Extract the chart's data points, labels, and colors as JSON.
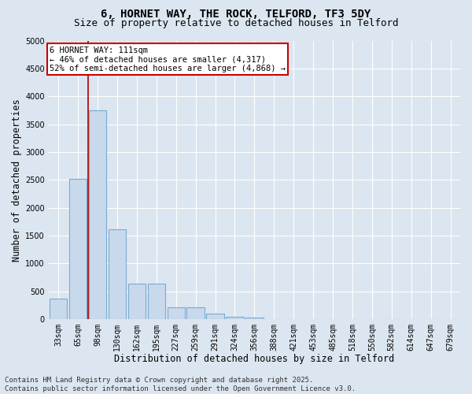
{
  "title": "6, HORNET WAY, THE ROCK, TELFORD, TF3 5DY",
  "subtitle": "Size of property relative to detached houses in Telford",
  "xlabel": "Distribution of detached houses by size in Telford",
  "ylabel": "Number of detached properties",
  "categories": [
    "33sqm",
    "65sqm",
    "98sqm",
    "130sqm",
    "162sqm",
    "195sqm",
    "227sqm",
    "259sqm",
    "291sqm",
    "324sqm",
    "356sqm",
    "388sqm",
    "421sqm",
    "453sqm",
    "485sqm",
    "518sqm",
    "550sqm",
    "582sqm",
    "614sqm",
    "647sqm",
    "679sqm"
  ],
  "values": [
    370,
    2520,
    3750,
    1620,
    640,
    640,
    220,
    220,
    100,
    50,
    30,
    0,
    0,
    0,
    0,
    0,
    0,
    0,
    0,
    0,
    0
  ],
  "bar_facecolor": "#c9d9ec",
  "bar_edgecolor": "#7aaad0",
  "vline_x": 1.5,
  "vline_color": "#aa0000",
  "ylim": [
    0,
    5000
  ],
  "yticks": [
    0,
    500,
    1000,
    1500,
    2000,
    2500,
    3000,
    3500,
    4000,
    4500,
    5000
  ],
  "annotation_text": "6 HORNET WAY: 111sqm\n← 46% of detached houses are smaller (4,317)\n52% of semi-detached houses are larger (4,868) →",
  "annotation_box_facecolor": "#ffffff",
  "annotation_box_edgecolor": "#cc0000",
  "background_color": "#dce6f0",
  "plot_bg_color": "#dce6f0",
  "grid_color": "#ffffff",
  "title_fontsize": 10,
  "subtitle_fontsize": 9,
  "tick_fontsize": 7,
  "label_fontsize": 8.5,
  "annotation_fontsize": 7.5,
  "footer_text": "Contains HM Land Registry data © Crown copyright and database right 2025.\nContains public sector information licensed under the Open Government Licence v3.0.",
  "footer_fontsize": 6.5
}
